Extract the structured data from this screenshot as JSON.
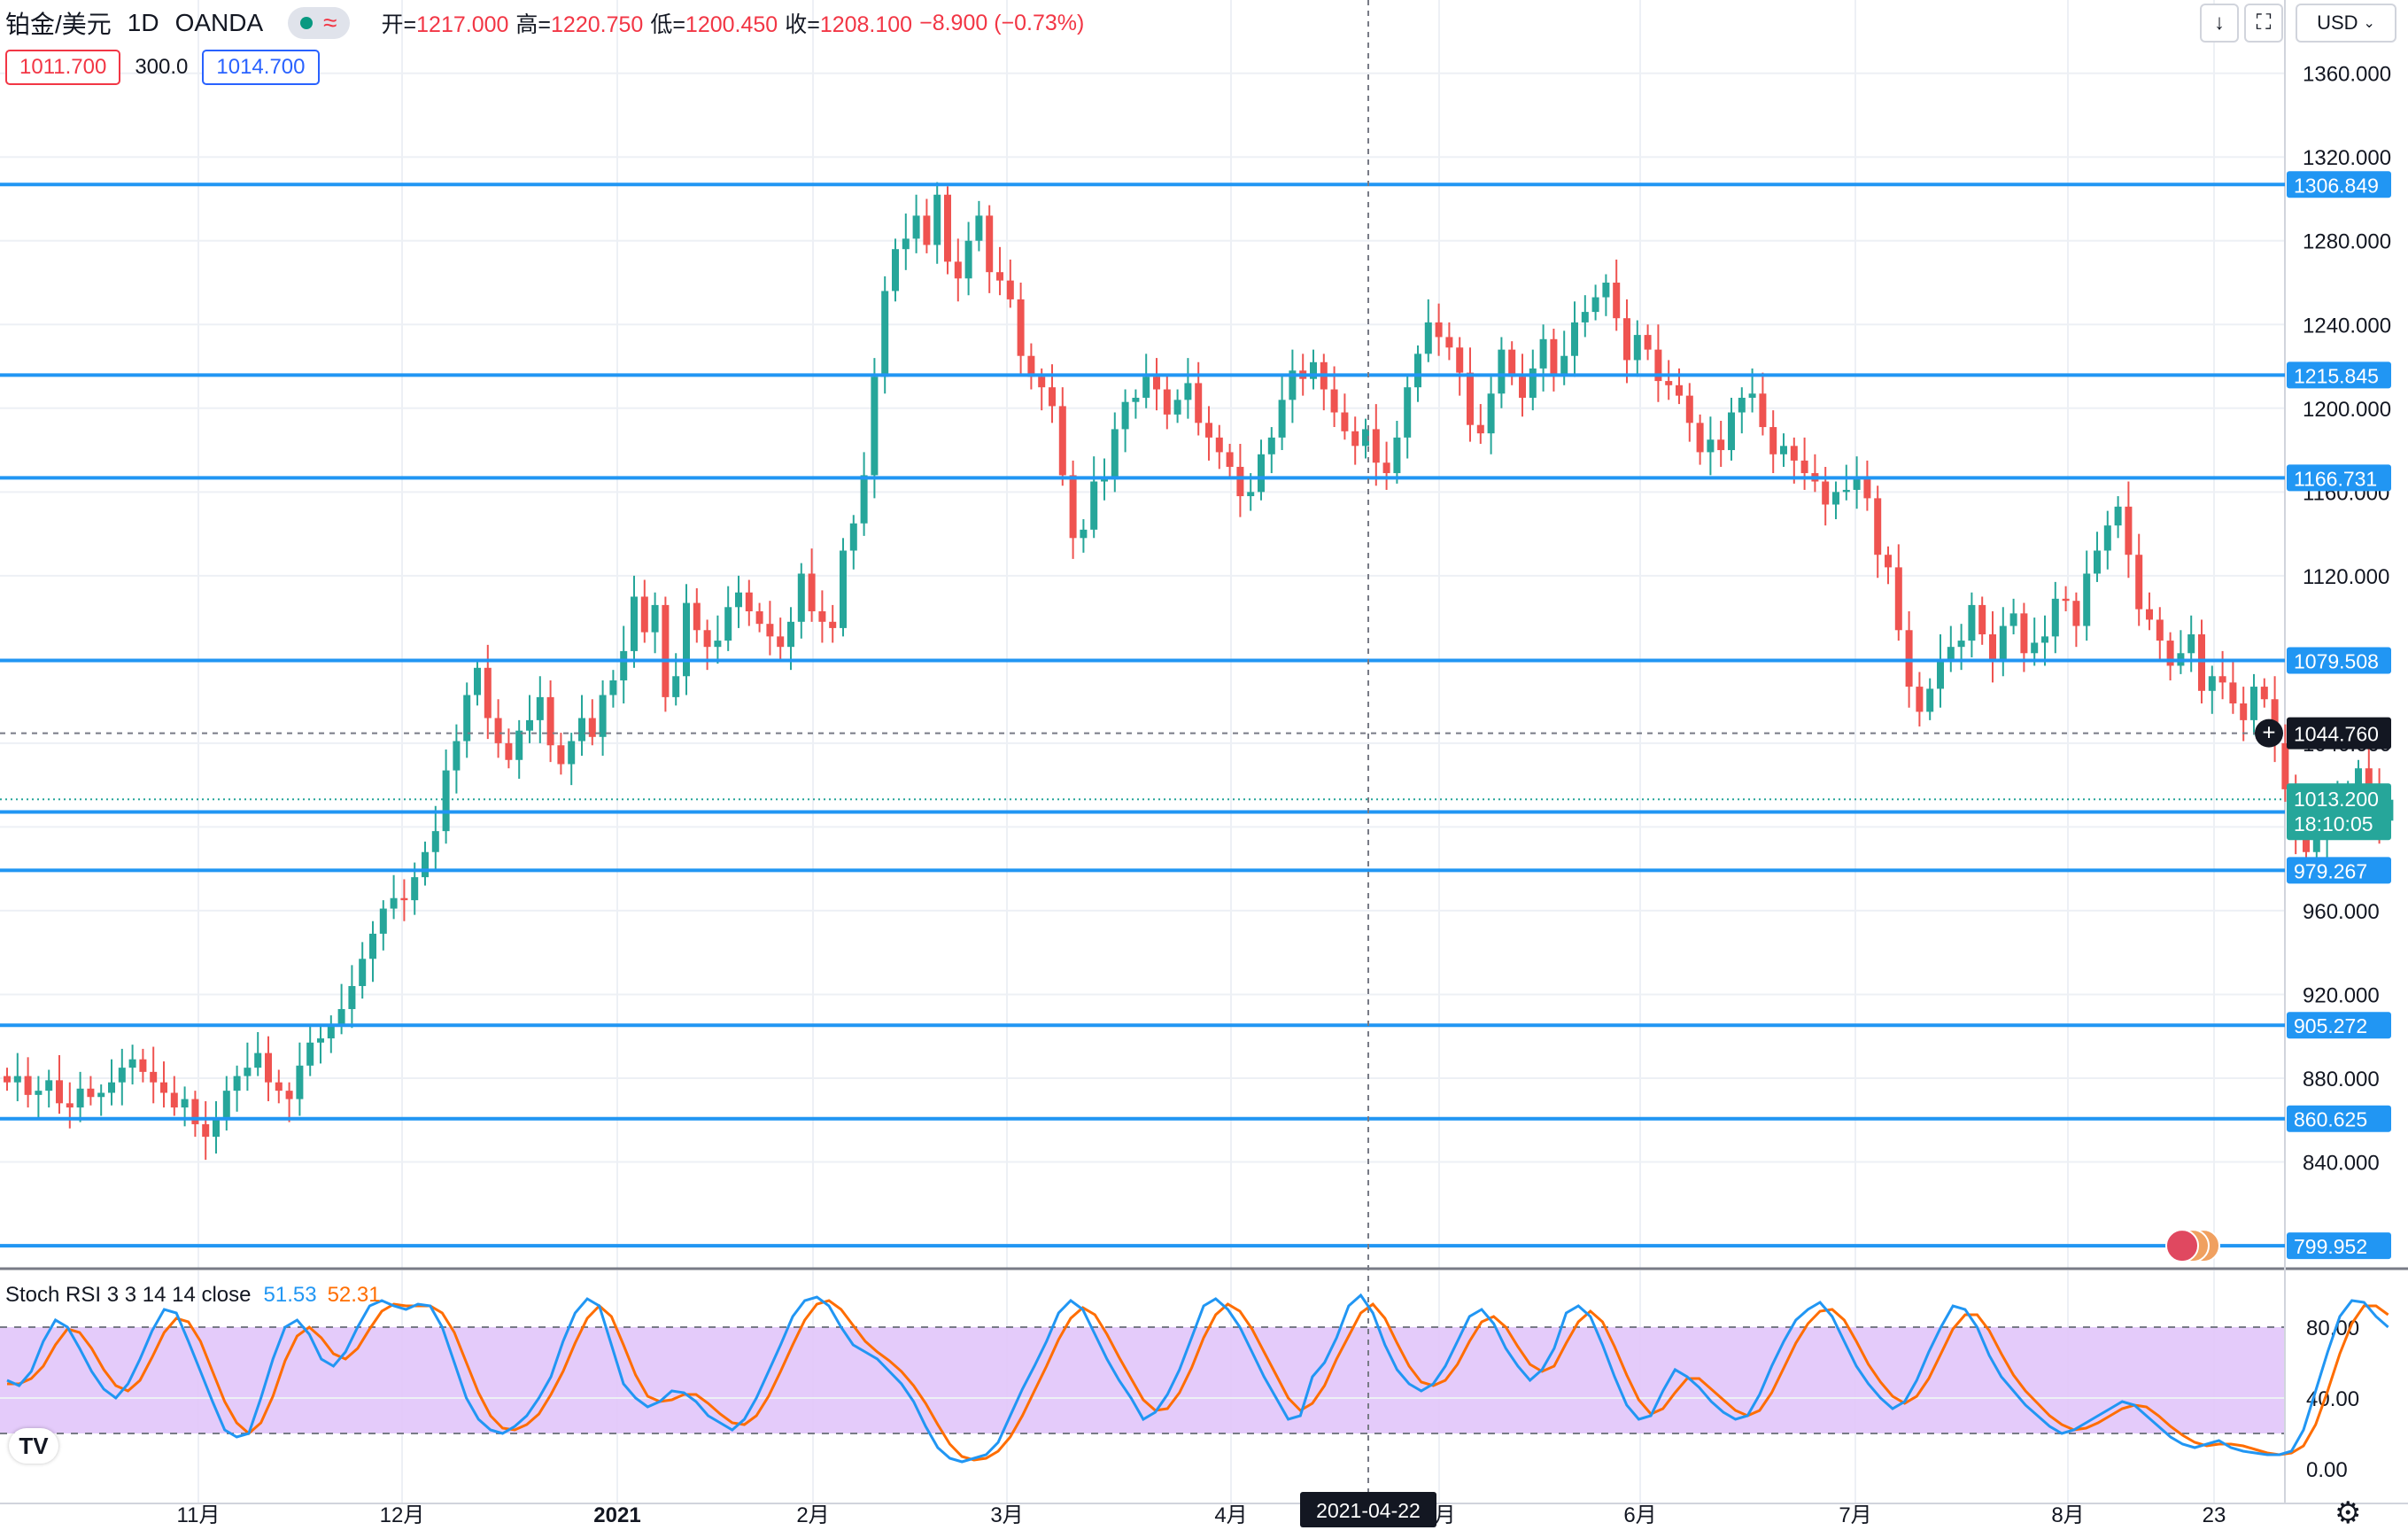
{
  "header": {
    "symbol": "铂金/美元",
    "timeframe": "1D",
    "exchange": "OANDA",
    "ohlc": [
      {
        "label": "开=",
        "value": "1217.000"
      },
      {
        "label": "高=",
        "value": "1220.750"
      },
      {
        "label": "低=",
        "value": "1200.450"
      },
      {
        "label": "收=",
        "value": "1208.100"
      }
    ],
    "change": "−8.900 (−0.73%)"
  },
  "quote": {
    "bid": "1011.700",
    "spread": "300.0",
    "ask": "1014.700"
  },
  "toolbar": {
    "currency": "USD",
    "currency_icon": "chevron-down-icon",
    "scale_icon": "arrow-down-icon",
    "fullscreen_icon": "fullscreen-icon"
  },
  "colors": {
    "up": "#26a69a",
    "down": "#ef5350",
    "hline": "#2196f3",
    "k_line": "#2196f3",
    "d_line": "#ff6d00",
    "rsi_band": "#e1c5fa",
    "grid": "#edf0f5",
    "label_green": "#26a69a",
    "label_dark": "#131722"
  },
  "indicator": {
    "label": "Stoch RSI 3 3 14 14 close",
    "k_value": "51.53",
    "d_value": "52.31"
  },
  "crosshair": {
    "date_label": "2021-04-22",
    "price_label": "1044.760"
  },
  "last_price": {
    "price": "1013.200",
    "countdown": "18:10:05"
  },
  "chart_data": {
    "type": "candlestick",
    "y_axis": {
      "ticks": [
        "1360.000",
        "1320.000",
        "1280.000",
        "1240.000",
        "1200.000",
        "1160.000",
        "1120.000",
        "1080.000",
        "1040.000",
        "1000.000",
        "960.000",
        "920.000",
        "880.000",
        "840.000"
      ],
      "range": [
        789,
        1395
      ]
    },
    "x_axis": {
      "ticks": [
        "11月",
        "12月",
        "2021",
        "2月",
        "3月",
        "4月",
        "5月",
        "6月",
        "7月",
        "8月",
        "23"
      ]
    },
    "horizontal_levels": [
      "1306.849",
      "1215.845",
      "1166.731",
      "1079.508",
      "1007.158",
      "979.267",
      "905.272",
      "860.625",
      "799.952"
    ],
    "close_series": [
      878,
      881,
      872,
      874,
      879,
      868,
      866,
      875,
      871,
      873,
      878,
      885,
      889,
      883,
      878,
      873,
      866,
      870,
      858,
      852,
      860,
      874,
      881,
      885,
      892,
      878,
      874,
      870,
      886,
      897,
      899,
      905,
      913,
      924,
      937,
      949,
      961,
      966,
      965,
      976,
      988,
      998,
      1027,
      1041,
      1063,
      1076,
      1052,
      1040,
      1032,
      1046,
      1051,
      1062,
      1039,
      1030,
      1041,
      1052,
      1043,
      1063,
      1070,
      1084,
      1110,
      1093,
      1106,
      1062,
      1072,
      1107,
      1094,
      1086,
      1089,
      1105,
      1112,
      1103,
      1097,
      1091,
      1086,
      1098,
      1121,
      1103,
      1098,
      1095,
      1132,
      1145,
      1168,
      1215,
      1256,
      1276,
      1281,
      1292,
      1278,
      1302,
      1270,
      1262,
      1280,
      1292,
      1265,
      1261,
      1252,
      1225,
      1215,
      1210,
      1201,
      1168,
      1138,
      1142,
      1165,
      1166,
      1190,
      1203,
      1205,
      1215,
      1209,
      1197,
      1204,
      1212,
      1193,
      1186,
      1179,
      1172,
      1158,
      1160,
      1178,
      1186,
      1204,
      1218,
      1214,
      1222,
      1209,
      1198,
      1189,
      1182,
      1190,
      1174,
      1169,
      1186,
      1210,
      1226,
      1241,
      1234,
      1229,
      1217,
      1192,
      1188,
      1207,
      1228,
      1215,
      1205,
      1219,
      1233,
      1216,
      1225,
      1241,
      1246,
      1253,
      1260,
      1243,
      1223,
      1235,
      1228,
      1213,
      1211,
      1206,
      1193,
      1179,
      1185,
      1180,
      1198,
      1205,
      1207,
      1191,
      1178,
      1182,
      1175,
      1169,
      1165,
      1154,
      1160,
      1161,
      1167,
      1157,
      1130,
      1124,
      1094,
      1067,
      1055,
      1066,
      1080,
      1086,
      1089,
      1106,
      1092,
      1079,
      1096,
      1102,
      1083,
      1088,
      1091,
      1109,
      1108,
      1096,
      1121,
      1132,
      1144,
      1153,
      1130,
      1104,
      1099,
      1089,
      1077,
      1083,
      1092,
      1065,
      1072,
      1069,
      1059,
      1051,
      1067,
      1061,
      1040,
      1018,
      998,
      988,
      994,
      1007,
      1014,
      1016,
      1028,
      1019,
      1003,
      1013
    ],
    "stoch_rsi": {
      "k": [
        50,
        47,
        55,
        72,
        84,
        80,
        68,
        55,
        45,
        40,
        48,
        62,
        78,
        90,
        88,
        72,
        55,
        38,
        22,
        18,
        20,
        40,
        62,
        80,
        84,
        76,
        62,
        58,
        66,
        80,
        92,
        95,
        92,
        90,
        93,
        92,
        80,
        60,
        40,
        28,
        22,
        20,
        24,
        30,
        40,
        52,
        72,
        88,
        96,
        92,
        70,
        48,
        40,
        35,
        38,
        44,
        43,
        38,
        30,
        26,
        22,
        28,
        40,
        55,
        70,
        86,
        95,
        97,
        92,
        80,
        70,
        66,
        62,
        55,
        48,
        38,
        24,
        12,
        6,
        4,
        6,
        8,
        15,
        30,
        45,
        58,
        72,
        88,
        95,
        90,
        76,
        62,
        50,
        40,
        28,
        32,
        42,
        56,
        74,
        92,
        96,
        90,
        80,
        66,
        52,
        40,
        28,
        30,
        52,
        60,
        74,
        92,
        98,
        88,
        70,
        56,
        48,
        44,
        48,
        58,
        72,
        86,
        90,
        82,
        68,
        58,
        50,
        56,
        68,
        88,
        92,
        86,
        70,
        52,
        36,
        28,
        30,
        44,
        56,
        52,
        46,
        38,
        32,
        28,
        30,
        42,
        58,
        72,
        84,
        90,
        94,
        86,
        72,
        58,
        48,
        40,
        34,
        38,
        50,
        66,
        80,
        92,
        90,
        80,
        64,
        52,
        44,
        36,
        30,
        24,
        20,
        22,
        26,
        30,
        34,
        38,
        36,
        30,
        24,
        18,
        14,
        12,
        14,
        16,
        12,
        10,
        9,
        8,
        8,
        10,
        22,
        44,
        66,
        86,
        95,
        94,
        86,
        80
      ],
      "d": [
        48,
        48,
        51,
        58,
        70,
        79,
        77,
        68,
        56,
        47,
        44,
        50,
        63,
        77,
        85,
        83,
        72,
        55,
        38,
        26,
        20,
        26,
        41,
        61,
        75,
        80,
        74,
        65,
        62,
        68,
        79,
        89,
        93,
        92,
        92,
        92,
        88,
        77,
        60,
        43,
        30,
        23,
        22,
        25,
        31,
        42,
        55,
        71,
        85,
        92,
        86,
        70,
        53,
        41,
        38,
        39,
        42,
        42,
        37,
        31,
        26,
        25,
        30,
        41,
        55,
        70,
        84,
        93,
        95,
        90,
        81,
        72,
        66,
        61,
        55,
        47,
        37,
        25,
        14,
        7,
        5,
        6,
        10,
        18,
        30,
        44,
        58,
        73,
        85,
        91,
        87,
        76,
        63,
        51,
        39,
        33,
        34,
        43,
        57,
        74,
        87,
        93,
        89,
        79,
        66,
        53,
        40,
        33,
        37,
        47,
        62,
        75,
        88,
        93,
        85,
        71,
        58,
        49,
        47,
        50,
        59,
        72,
        83,
        86,
        80,
        69,
        59,
        55,
        58,
        71,
        83,
        89,
        83,
        69,
        53,
        39,
        31,
        34,
        43,
        51,
        51,
        45,
        39,
        33,
        30,
        33,
        43,
        57,
        71,
        82,
        89,
        90,
        84,
        72,
        59,
        49,
        41,
        37,
        41,
        51,
        65,
        79,
        87,
        87,
        78,
        65,
        53,
        44,
        37,
        30,
        25,
        22,
        23,
        26,
        30,
        34,
        36,
        35,
        30,
        24,
        19,
        15,
        13,
        14,
        14,
        13,
        11,
        9,
        8,
        9,
        13,
        25,
        44,
        65,
        82,
        92,
        92,
        87
      ]
    }
  }
}
